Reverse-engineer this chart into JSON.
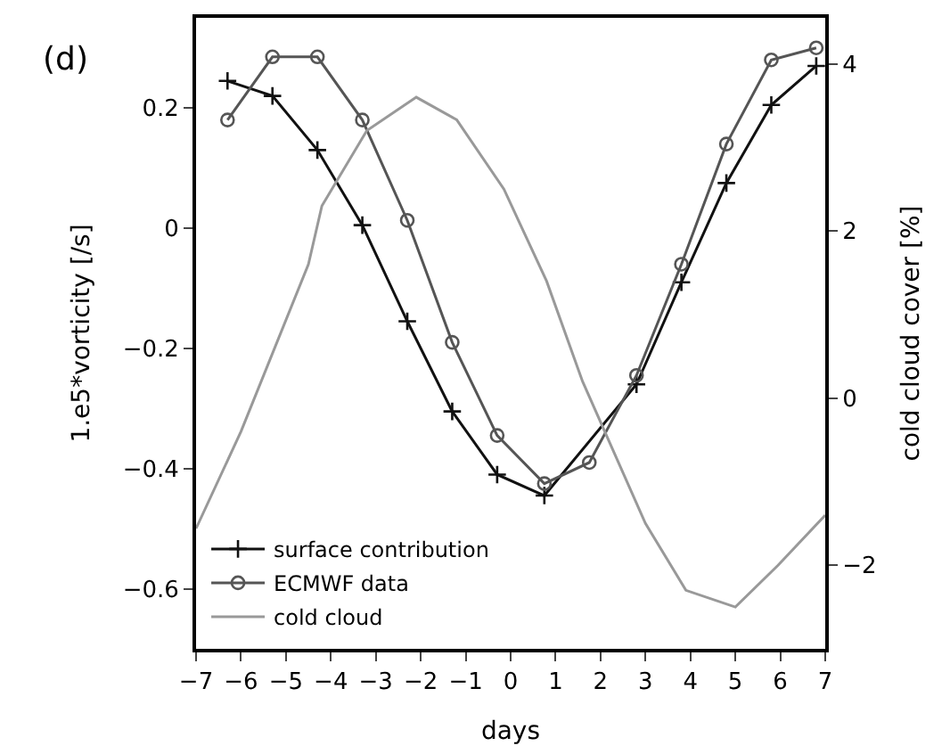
{
  "chart_data": {
    "type": "line",
    "xlabel": "days",
    "ylabel": "1.e5*vorticity [/s]",
    "y2label": "cold cloud cover [%]",
    "annotations": [
      "(d)"
    ],
    "xlim": [
      -7,
      7
    ],
    "xticks": [
      -7,
      -6,
      -5,
      -4,
      -3,
      -2,
      -1,
      0,
      1,
      2,
      3,
      4,
      5,
      6,
      7
    ],
    "ylim": [
      -0.7,
      0.35
    ],
    "yticks": [
      -0.6,
      -0.4,
      -0.2,
      0,
      0.2
    ],
    "y2lim": [
      -3,
      4.55
    ],
    "y2ticks": [
      -2,
      0,
      2,
      4
    ],
    "legend": "bottom left",
    "series": [
      {
        "name": "surface contribution",
        "color": "#111111",
        "marker": "cross",
        "x": [
          -6.3,
          -5.3,
          -4.3,
          -3.3,
          -2.3,
          -1.3,
          -0.3,
          0.75,
          2.8,
          3.8,
          4.8,
          5.8,
          6.8
        ],
        "values": [
          0.245,
          0.22,
          0.13,
          0.005,
          -0.155,
          -0.305,
          -0.41,
          -0.445,
          -0.26,
          -0.09,
          0.075,
          0.205,
          0.27
        ]
      },
      {
        "name": "ECMWF data",
        "color": "#555555",
        "marker": "circle",
        "x": [
          -6.3,
          -5.3,
          -4.3,
          -3.3,
          -2.3,
          -1.3,
          -0.3,
          0.75,
          1.75,
          2.8,
          3.8,
          4.8,
          5.8,
          6.8
        ],
        "values": [
          0.18,
          0.285,
          0.285,
          0.18,
          0.013,
          -0.19,
          -0.345,
          -0.425,
          -0.39,
          -0.245,
          -0.06,
          0.14,
          0.28,
          0.3
        ]
      },
      {
        "name": "cold cloud",
        "color": "#999999",
        "marker": "none",
        "axis": "y2",
        "x": [
          -7,
          -6,
          -4.5,
          -4.2,
          -3.2,
          -2.1,
          -1.2,
          -0.15,
          0.8,
          1.6,
          3.0,
          3.9,
          5.0,
          5.95,
          7
        ],
        "values": [
          -1.56,
          -0.4,
          1.6,
          2.3,
          3.2,
          3.6,
          3.33,
          2.5,
          1.4,
          0.2,
          -1.5,
          -2.3,
          -2.5,
          -2.0,
          -1.4
        ]
      }
    ]
  }
}
